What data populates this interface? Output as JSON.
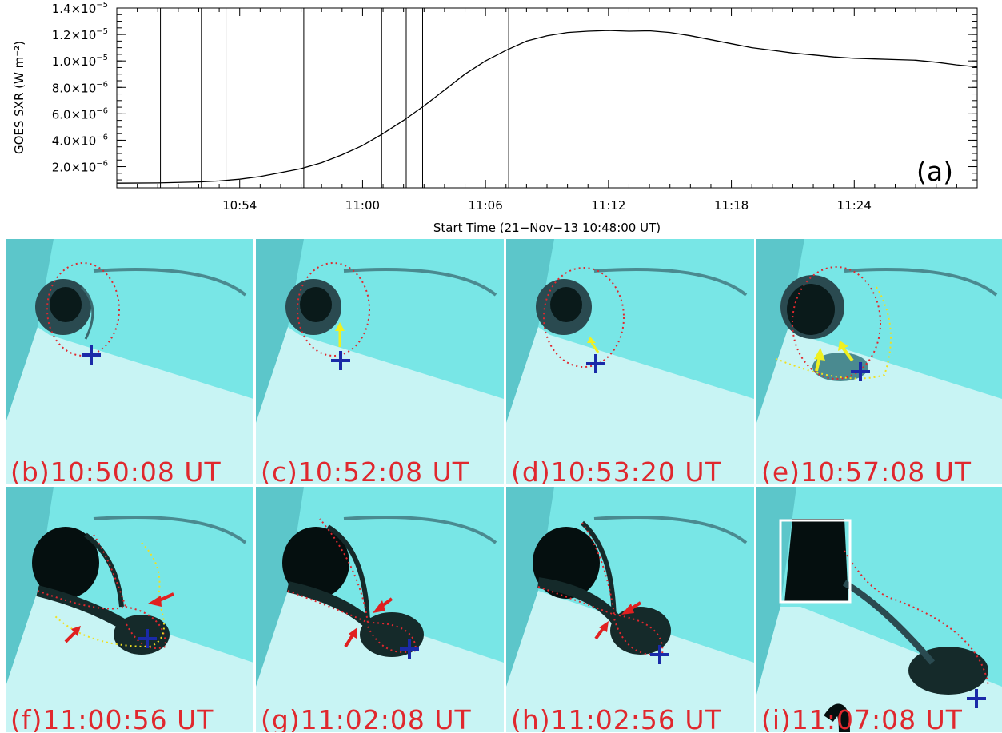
{
  "chart_data": {
    "type": "line",
    "ylabel": "GOES SXR (W m⁻²)",
    "xlabel": "Start Time (21−Nov−13 10:48:00 UT)",
    "panel_label": "(a)",
    "xlim_minutes": [
      0,
      42
    ],
    "ylim": [
      4e-07,
      1.4e-05
    ],
    "y_ticks": [
      {
        "value": 2e-06,
        "mantissa": "2.0×10",
        "exp": "−6"
      },
      {
        "value": 4e-06,
        "mantissa": "4.0×10",
        "exp": "−6"
      },
      {
        "value": 6e-06,
        "mantissa": "6.0×10",
        "exp": "−6"
      },
      {
        "value": 8e-06,
        "mantissa": "8.0×10",
        "exp": "−6"
      },
      {
        "value": 1e-05,
        "mantissa": "1.0×10",
        "exp": "−5"
      },
      {
        "value": 1.2e-05,
        "mantissa": "1.2×10",
        "exp": "−5"
      },
      {
        "value": 1.4e-05,
        "mantissa": "1.4×10",
        "exp": "−5"
      }
    ],
    "x_ticks": [
      {
        "minute": 6,
        "label": "10:54"
      },
      {
        "minute": 12,
        "label": "11:00"
      },
      {
        "minute": 18,
        "label": "11:06"
      },
      {
        "minute": 24,
        "label": "11:12"
      },
      {
        "minute": 30,
        "label": "11:18"
      },
      {
        "minute": 36,
        "label": "11:24"
      }
    ],
    "vertical_lines_minutes": [
      2.13,
      4.13,
      5.33,
      9.13,
      12.93,
      14.13,
      14.93,
      19.13
    ],
    "series": [
      {
        "x_minutes": [
          0,
          2,
          4,
          5,
          6,
          7,
          8,
          9,
          10,
          11,
          12,
          13,
          14,
          15,
          16,
          17,
          18,
          19,
          20,
          21,
          22,
          23,
          24,
          25,
          26,
          27,
          28,
          29,
          30,
          31,
          32,
          33,
          34,
          35,
          36,
          37,
          38,
          39,
          40,
          41,
          42
        ],
        "values": [
          7.5e-07,
          7.7e-07,
          8.5e-07,
          9.2e-07,
          1.05e-06,
          1.25e-06,
          1.55e-06,
          1.85e-06,
          2.3e-06,
          2.9e-06,
          3.6e-06,
          4.5e-06,
          5.5e-06,
          6.6e-06,
          7.8e-06,
          9e-06,
          1e-05,
          1.08e-05,
          1.15e-05,
          1.19e-05,
          1.215e-05,
          1.225e-05,
          1.23e-05,
          1.225e-05,
          1.228e-05,
          1.215e-05,
          1.19e-05,
          1.16e-05,
          1.13e-05,
          1.1e-05,
          1.08e-05,
          1.06e-05,
          1.045e-05,
          1.03e-05,
          1.02e-05,
          1.015e-05,
          1.01e-05,
          1.005e-05,
          9.9e-06,
          9.7e-06,
          9.55e-06
        ]
      }
    ]
  },
  "panels": [
    {
      "label": "(b)10:50:08 UT"
    },
    {
      "label": "(c)10:52:08 UT"
    },
    {
      "label": "(d)10:53:20 UT"
    },
    {
      "label": "(e)10:57:08 UT"
    },
    {
      "label": "(f)11:00:56 UT"
    },
    {
      "label": "(g)11:02:08 UT"
    },
    {
      "label": "(h)11:02:56 UT"
    },
    {
      "label": "(i)11:07:08 UT"
    }
  ],
  "colors": {
    "panel_background": "#78e6e6",
    "label": "#e0282e",
    "contour_red": "#e0282e",
    "contour_yellow": "#f0e020",
    "marker_plus": "#1a2aa8",
    "arrow_red": "#e02020",
    "arrow_yellow": "#f0f020",
    "box_white": "#ffffff"
  }
}
